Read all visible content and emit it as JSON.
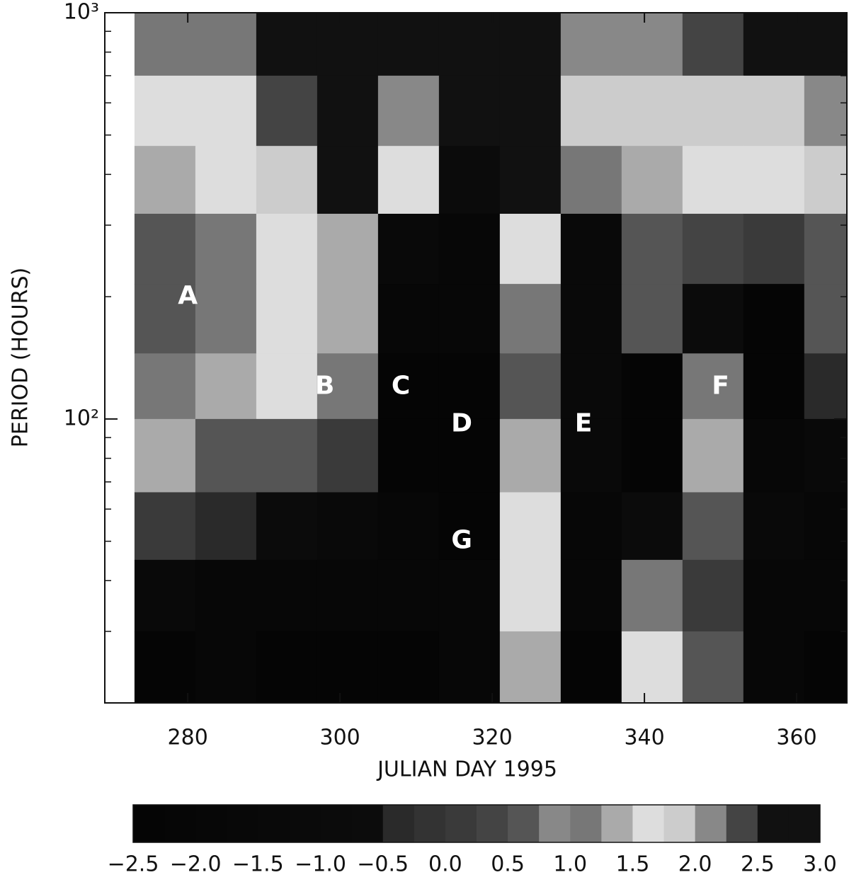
{
  "chart_data": {
    "type": "heatmap",
    "x_label": "JULIAN DAY 1995",
    "y_label": "PERIOD (HOURS)",
    "log_y": true,
    "xlim": [
      269.1,
      366.6
    ],
    "ylim": [
      20,
      1000
    ],
    "xticks": [
      280,
      300,
      320,
      340,
      360
    ],
    "yticks": [
      {
        "value": 100,
        "label": "10²"
      },
      {
        "value": 1000,
        "label": "10³"
      }
    ],
    "yminor": [
      20,
      30,
      40,
      50,
      60,
      70,
      80,
      90,
      200,
      300,
      400,
      500,
      600,
      700,
      800,
      900
    ],
    "x_edges": [
      273,
      281,
      289,
      297,
      305,
      313,
      321,
      329,
      337,
      345,
      353,
      361,
      366.6
    ],
    "y_edges": [
      1000,
      700,
      470,
      320,
      215,
      145,
      100,
      66,
      45,
      30,
      20
    ],
    "z": [
      [
        1.0,
        1.0,
        2.5,
        3.0,
        3.0,
        3.0,
        3.0,
        2.0,
        2.0,
        2.25,
        2.5,
        3.0
      ],
      [
        1.5,
        1.5,
        2.25,
        2.5,
        2.0,
        2.5,
        3.0,
        1.75,
        1.75,
        1.75,
        1.75,
        2.0
      ],
      [
        1.25,
        1.5,
        1.75,
        2.5,
        1.5,
        -1.0,
        2.5,
        1.0,
        1.25,
        1.5,
        1.5,
        1.75
      ],
      [
        0.5,
        1.0,
        1.5,
        1.25,
        -1.5,
        -2.0,
        1.5,
        -1.5,
        0.5,
        0.25,
        0.0,
        0.5
      ],
      [
        0.5,
        1.0,
        1.5,
        1.25,
        -2.0,
        -2.0,
        1.0,
        -1.5,
        0.5,
        -1.0,
        -2.5,
        0.5
      ],
      [
        1.0,
        1.25,
        1.5,
        1.0,
        -2.5,
        -2.5,
        0.5,
        -1.5,
        -2.5,
        1.0,
        -2.5,
        -0.5
      ],
      [
        1.25,
        0.5,
        0.5,
        0.0,
        -2.5,
        -2.5,
        1.25,
        -1.5,
        -2.5,
        1.25,
        -2.0,
        -1.5
      ],
      [
        0.0,
        -0.5,
        -1.0,
        -1.5,
        -2.0,
        -2.5,
        1.5,
        -2.0,
        -1.0,
        0.5,
        -1.5,
        -2.0
      ],
      [
        -1.5,
        -2.0,
        -2.0,
        -2.0,
        -2.0,
        -2.0,
        1.5,
        -2.0,
        1.0,
        0.0,
        -2.0,
        -2.0
      ],
      [
        -2.5,
        -2.0,
        -2.5,
        -2.5,
        -2.5,
        -2.0,
        1.25,
        -2.5,
        1.5,
        0.5,
        -2.0,
        -2.5
      ]
    ],
    "annotations": [
      {
        "text": "A",
        "x": 280,
        "y": 200
      },
      {
        "text": "B",
        "x": 298,
        "y": 120
      },
      {
        "text": "C",
        "x": 308,
        "y": 120
      },
      {
        "text": "D",
        "x": 316,
        "y": 97
      },
      {
        "text": "E",
        "x": 332,
        "y": 97
      },
      {
        "text": "F",
        "x": 350,
        "y": 120
      },
      {
        "text": "G",
        "x": 316,
        "y": 50
      }
    ],
    "colorbar": {
      "lim": [
        -2.5,
        3.0
      ],
      "levels": [
        -2.5,
        -2.25,
        -2.0,
        -1.75,
        -1.5,
        -1.25,
        -1.0,
        -0.75,
        -0.5,
        -0.25,
        0.0,
        0.25,
        0.5,
        0.75,
        1.0,
        1.25,
        1.5,
        1.75,
        2.0,
        2.25,
        2.5,
        2.75,
        3.0
      ],
      "colors": [
        "#050505",
        "#060606",
        "#070707",
        "#080808",
        "#090909",
        "#0a0a0a",
        "#0b0b0b",
        "#0c0c0c",
        "#2a2a2a",
        "#333333",
        "#3a3a3a",
        "#444444",
        "#555555",
        "#888888",
        "#777777",
        "#aaaaaa",
        "#dddddd",
        "#cccccc",
        "#888888",
        "#444444",
        "#111111",
        "#111111"
      ],
      "ticks": [
        {
          "value": -2.5,
          "label": "−2.5"
        },
        {
          "value": -2.0,
          "label": "−2.0"
        },
        {
          "value": -1.5,
          "label": "−1.5"
        },
        {
          "value": -1.0,
          "label": "−1.0"
        },
        {
          "value": -0.5,
          "label": "−0.5"
        },
        {
          "value": 0.0,
          "label": "0.0"
        },
        0.5,
        {
          "value": 1.0,
          "label": "1.0"
        },
        1.5,
        {
          "value": 2.0,
          "label": "2.0"
        },
        2.5,
        {
          "value": 3.0,
          "label": "3.0"
        }
      ]
    }
  }
}
